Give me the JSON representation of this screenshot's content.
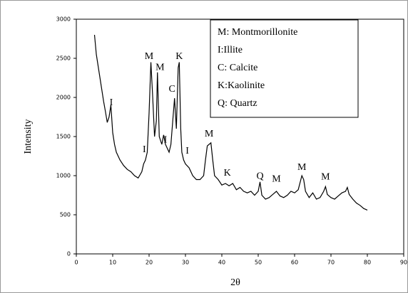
{
  "chart_data": {
    "type": "line",
    "x_label": "2θ",
    "y_label": "Intensity",
    "xlim": [
      0,
      90
    ],
    "xticks": [
      0,
      10,
      20,
      30,
      40,
      50,
      60,
      70,
      80,
      90
    ],
    "ylim": [
      0,
      3000
    ],
    "yticks": [
      0,
      500,
      1000,
      1500,
      2000,
      2500,
      3000
    ],
    "series": [
      {
        "color": "#000000",
        "x": [
          5,
          5.5,
          6,
          6.5,
          7,
          7.5,
          8,
          8.5,
          9,
          9.5,
          10,
          10.5,
          11,
          11.5,
          12,
          13,
          14,
          15,
          16,
          17,
          18,
          18.5,
          19,
          19.5,
          20,
          20.5,
          21,
          21.5,
          22,
          22.3,
          22.8,
          23.5,
          24,
          24.5,
          25,
          25.5,
          26,
          27,
          27.5,
          28,
          28.3,
          28.7,
          29,
          29.5,
          30,
          31,
          32,
          33,
          34,
          35,
          35.5,
          36,
          36.5,
          37,
          37.5,
          38,
          39,
          40,
          41,
          42,
          43,
          44,
          45,
          46,
          47,
          48,
          49,
          50,
          50.5,
          51,
          52,
          53,
          54,
          55,
          56,
          57,
          58,
          59,
          60,
          61,
          62,
          62.5,
          63,
          64,
          65,
          66,
          67,
          68,
          68.5,
          69,
          70,
          71,
          72,
          73,
          74,
          74.5,
          75,
          76,
          77,
          78,
          79,
          80
        ],
        "values": [
          2800,
          2550,
          2400,
          2250,
          2100,
          1950,
          1820,
          1680,
          1750,
          1900,
          1550,
          1400,
          1300,
          1250,
          1200,
          1130,
          1080,
          1050,
          1000,
          970,
          1050,
          1150,
          1200,
          1300,
          1800,
          2450,
          2000,
          1500,
          1700,
          2320,
          1500,
          1400,
          1520,
          1400,
          1350,
          1300,
          1400,
          1990,
          1600,
          2380,
          2450,
          1600,
          1300,
          1200,
          1150,
          1100,
          1000,
          950,
          950,
          1000,
          1200,
          1380,
          1400,
          1420,
          1200,
          1000,
          950,
          880,
          900,
          870,
          900,
          820,
          850,
          800,
          780,
          800,
          750,
          800,
          920,
          750,
          700,
          720,
          760,
          800,
          740,
          720,
          750,
          800,
          780,
          820,
          1000,
          950,
          800,
          720,
          780,
          700,
          720,
          800,
          860,
          760,
          720,
          700,
          740,
          780,
          800,
          850,
          760,
          700,
          650,
          620,
          580,
          560
        ]
      }
    ],
    "annotations": [
      {
        "text": "I",
        "x": 9.6,
        "y": 1930
      },
      {
        "text": "M",
        "x": 20,
        "y": 2520
      },
      {
        "text": "M",
        "x": 23,
        "y": 2380
      },
      {
        "text": "K",
        "x": 28.3,
        "y": 2520
      },
      {
        "text": "C",
        "x": 26.3,
        "y": 2100
      },
      {
        "text": "I",
        "x": 18.7,
        "y": 1330
      },
      {
        "text": "I",
        "x": 24.5,
        "y": 1450
      },
      {
        "text": "I",
        "x": 30.5,
        "y": 1310
      },
      {
        "text": "M",
        "x": 36.5,
        "y": 1530
      },
      {
        "text": "K",
        "x": 41.5,
        "y": 1030
      },
      {
        "text": "Q",
        "x": 50.5,
        "y": 990
      },
      {
        "text": "M",
        "x": 55,
        "y": 950
      },
      {
        "text": "M",
        "x": 62,
        "y": 1100
      },
      {
        "text": "M",
        "x": 68.5,
        "y": 980
      }
    ],
    "key": [
      "M: Montmorillonite",
      "I:Illite",
      "C: Calcite",
      "K:Kaolinite",
      "Q: Quartz"
    ]
  }
}
